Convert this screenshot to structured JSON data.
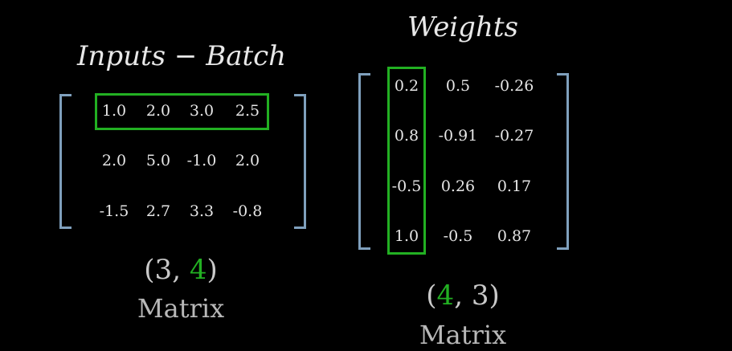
{
  "inputs": {
    "title": "Inputs − Batch",
    "rows": [
      [
        "1.0",
        "2.0",
        "3.0",
        "2.5"
      ],
      [
        "2.0",
        "5.0",
        "-1.0",
        "2.0"
      ],
      [
        "-1.5",
        "2.7",
        "3.3",
        "-0.8"
      ]
    ],
    "shape": {
      "open": "(",
      "dim1": "3",
      "sep": ", ",
      "dim2": "4",
      "close": ")"
    },
    "label": "Matrix"
  },
  "weights": {
    "title": "Weights",
    "rows": [
      [
        "0.2",
        "0.5",
        "-0.26"
      ],
      [
        "0.8",
        "-0.91",
        "-0.27"
      ],
      [
        "-0.5",
        "0.26",
        "0.17"
      ],
      [
        "1.0",
        "-0.5",
        "0.87"
      ]
    ],
    "shape": {
      "open": "(",
      "dim1": "4",
      "sep": ", ",
      "dim2": "3",
      "close": ")"
    },
    "label": "Matrix"
  },
  "colors": {
    "highlight": "#22b022",
    "bracket": "#7fa0bd",
    "background": "#000000"
  }
}
